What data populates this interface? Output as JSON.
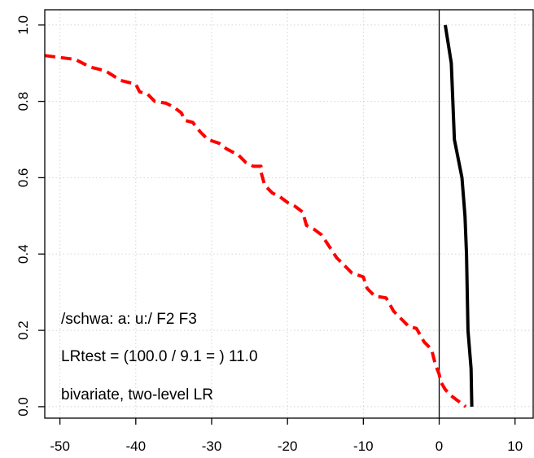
{
  "chart_data": {
    "type": "line",
    "title": "",
    "xlabel": "",
    "ylabel": "",
    "xlim": [
      -52,
      12.5
    ],
    "ylim": [
      -0.03,
      1.04
    ],
    "x_ticks": [
      -50,
      -40,
      -30,
      -20,
      -10,
      0,
      10
    ],
    "x_tick_labels": [
      "-50",
      "-40",
      "-30",
      "-20",
      "-10",
      "0",
      "10"
    ],
    "y_ticks": [
      0.0,
      0.2,
      0.4,
      0.6,
      0.8,
      1.0
    ],
    "y_tick_labels": [
      "0.0",
      "0.2",
      "0.4",
      "0.6",
      "0.8",
      "1.0"
    ],
    "grid": true,
    "vertical_reference_line_x": 0,
    "annotations": [
      "/schwa: a: u:/ F2 F3",
      "LRtest = (100.0 / 9.1 = ) 11.0",
      "bivariate, two-level LR"
    ],
    "series": [
      {
        "style": "dashed",
        "color": "#ff0000",
        "points": [
          [
            -52,
            0.92
          ],
          [
            -48,
            0.91
          ],
          [
            -46,
            0.89
          ],
          [
            -44,
            0.88
          ],
          [
            -42,
            0.855
          ],
          [
            -40,
            0.845
          ],
          [
            -39.5,
            0.825
          ],
          [
            -38.5,
            0.82
          ],
          [
            -37.5,
            0.8
          ],
          [
            -36,
            0.795
          ],
          [
            -35,
            0.785
          ],
          [
            -34,
            0.77
          ],
          [
            -33.5,
            0.75
          ],
          [
            -32.5,
            0.745
          ],
          [
            -31.5,
            0.72
          ],
          [
            -30.5,
            0.7
          ],
          [
            -29,
            0.69
          ],
          [
            -28,
            0.675
          ],
          [
            -26.5,
            0.66
          ],
          [
            -25.5,
            0.64
          ],
          [
            -24.5,
            0.63
          ],
          [
            -23.5,
            0.63
          ],
          [
            -23.5,
            0.615
          ],
          [
            -23,
            0.58
          ],
          [
            -22,
            0.56
          ],
          [
            -21,
            0.55
          ],
          [
            -20,
            0.535
          ],
          [
            -19,
            0.525
          ],
          [
            -18,
            0.51
          ],
          [
            -17.5,
            0.475
          ],
          [
            -16.5,
            0.465
          ],
          [
            -15.5,
            0.45
          ],
          [
            -14.5,
            0.42
          ],
          [
            -13.5,
            0.39
          ],
          [
            -12.5,
            0.37
          ],
          [
            -11.5,
            0.35
          ],
          [
            -10,
            0.34
          ],
          [
            -9.5,
            0.31
          ],
          [
            -8.5,
            0.29
          ],
          [
            -7,
            0.285
          ],
          [
            -6,
            0.25
          ],
          [
            -5,
            0.23
          ],
          [
            -4,
            0.21
          ],
          [
            -3,
            0.205
          ],
          [
            -2,
            0.17
          ],
          [
            -1,
            0.15
          ],
          [
            -0.5,
            0.11
          ],
          [
            0,
            0.085
          ],
          [
            0.2,
            0.065
          ],
          [
            0.8,
            0.045
          ],
          [
            1.5,
            0.03
          ],
          [
            2.5,
            0.015
          ],
          [
            3.5,
            0.0
          ]
        ]
      },
      {
        "style": "solid",
        "color": "#000000",
        "points": [
          [
            0.8,
            1.0
          ],
          [
            1.6,
            0.9
          ],
          [
            1.8,
            0.8
          ],
          [
            2.0,
            0.7
          ],
          [
            3.0,
            0.6
          ],
          [
            3.4,
            0.5
          ],
          [
            3.6,
            0.4
          ],
          [
            3.7,
            0.3
          ],
          [
            3.8,
            0.2
          ],
          [
            4.2,
            0.1
          ],
          [
            4.3,
            0.0
          ]
        ]
      }
    ]
  }
}
